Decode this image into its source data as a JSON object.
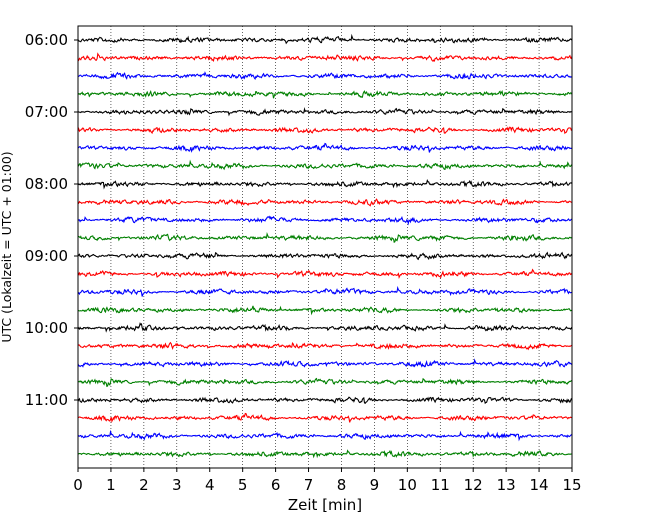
{
  "chart_data": {
    "type": "line",
    "title": "",
    "xlabel": "Zeit  [min]",
    "ylabel": "UTC (Lokalzeit = UTC + 01:00)",
    "xlim": [
      0,
      15
    ],
    "x_ticks": [
      "0",
      "1",
      "2",
      "3",
      "4",
      "5",
      "6",
      "7",
      "8",
      "9",
      "10",
      "11",
      "12",
      "13",
      "14",
      "15"
    ],
    "y_ticks": [
      "06:00",
      "07:00",
      "08:00",
      "09:00",
      "10:00",
      "11:00"
    ],
    "grid_x": true,
    "grid_style": "dotted",
    "trace_interval_min": 15,
    "trace_count": 24,
    "trace_colors": [
      "#000000",
      "#ff0000",
      "#0000ff",
      "#008000"
    ],
    "series": [
      {
        "start": "06:00",
        "color": "#000000"
      },
      {
        "start": "06:15",
        "color": "#ff0000"
      },
      {
        "start": "06:30",
        "color": "#0000ff"
      },
      {
        "start": "06:45",
        "color": "#008000"
      },
      {
        "start": "07:00",
        "color": "#000000"
      },
      {
        "start": "07:15",
        "color": "#ff0000"
      },
      {
        "start": "07:30",
        "color": "#0000ff"
      },
      {
        "start": "07:45",
        "color": "#008000"
      },
      {
        "start": "08:00",
        "color": "#000000"
      },
      {
        "start": "08:15",
        "color": "#ff0000"
      },
      {
        "start": "08:30",
        "color": "#0000ff"
      },
      {
        "start": "08:45",
        "color": "#008000"
      },
      {
        "start": "09:00",
        "color": "#000000"
      },
      {
        "start": "09:15",
        "color": "#ff0000"
      },
      {
        "start": "09:30",
        "color": "#0000ff"
      },
      {
        "start": "09:45",
        "color": "#008000"
      },
      {
        "start": "10:00",
        "color": "#000000"
      },
      {
        "start": "10:15",
        "color": "#ff0000"
      },
      {
        "start": "10:30",
        "color": "#0000ff"
      },
      {
        "start": "10:45",
        "color": "#008000"
      },
      {
        "start": "11:00",
        "color": "#000000"
      },
      {
        "start": "11:15",
        "color": "#ff0000"
      },
      {
        "start": "11:30",
        "color": "#0000ff"
      },
      {
        "start": "11:45",
        "color": "#008000"
      }
    ]
  }
}
